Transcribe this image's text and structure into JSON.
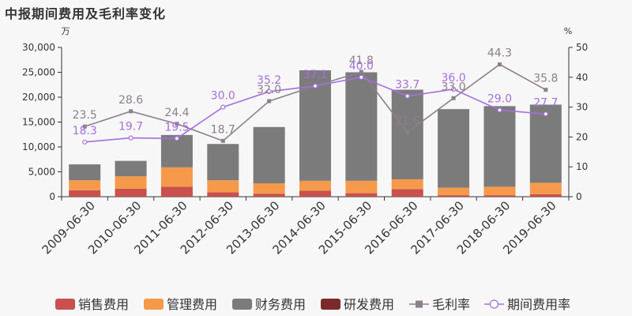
{
  "page": {
    "title": "中报期间费用及毛利率变化"
  },
  "chart_data": {
    "type": "bar",
    "stacked": true,
    "categories": [
      "2009-06-30",
      "2010-06-30",
      "2011-06-30",
      "2012-06-30",
      "2013-06-30",
      "2014-06-30",
      "2015-06-30",
      "2016-06-30",
      "2017-06-30",
      "2018-06-30",
      "2019-06-30"
    ],
    "left_axis": {
      "unit": "万",
      "min": 0,
      "max": 30000,
      "ticks": [
        "0",
        "5,000",
        "10,000",
        "15,000",
        "20,000",
        "25,000",
        "30,000"
      ]
    },
    "right_axis": {
      "unit": "%",
      "min": 0,
      "max": 50,
      "ticks": [
        "0",
        "10",
        "20",
        "30",
        "40",
        "50"
      ]
    },
    "series": [
      {
        "name": "销售费用",
        "kind": "bar",
        "color": "#c8504d",
        "values": [
          1300,
          1600,
          2000,
          900,
          600,
          1200,
          700,
          1500,
          300,
          300,
          500
        ]
      },
      {
        "name": "管理费用",
        "kind": "bar",
        "color": "#f59a4a",
        "values": [
          2000,
          2500,
          3900,
          2400,
          2100,
          2000,
          2500,
          2000,
          1500,
          1700,
          2300
        ]
      },
      {
        "name": "财务费用",
        "kind": "bar",
        "color": "#7b7b7b",
        "values": [
          3200,
          3100,
          6500,
          7300,
          11300,
          22200,
          21800,
          18000,
          15800,
          16200,
          15700
        ]
      },
      {
        "name": "研发费用",
        "kind": "bar",
        "color": "#7a2a2a",
        "values": [
          0,
          0,
          0,
          0,
          0,
          0,
          0,
          0,
          0,
          0,
          0
        ]
      },
      {
        "name": "毛利率",
        "kind": "line",
        "axis": "right",
        "color": "#8c7f8c",
        "marker": "square",
        "values": [
          23.5,
          28.6,
          24.4,
          18.7,
          32.0,
          37.1,
          41.8,
          21.6,
          33.0,
          44.3,
          35.8
        ],
        "labels": [
          "23.5",
          "28.6",
          "24.4",
          "18.7",
          "32.0",
          "37.1",
          "41.8",
          "21.6",
          "33.0",
          "44.3",
          "35.8"
        ]
      },
      {
        "name": "期间费用率",
        "kind": "line",
        "axis": "right",
        "color": "#a66ee0",
        "marker": "circle",
        "values": [
          18.3,
          19.7,
          19.5,
          30.0,
          35.2,
          37.1,
          40.0,
          33.7,
          36.0,
          29.0,
          27.7
        ],
        "labels": [
          "18.3",
          "19.7",
          "19.5",
          "30.0",
          "35.2",
          "37.1",
          "40.0",
          "33.7",
          "36.0",
          "29.0",
          "27.7"
        ]
      }
    ],
    "legend": {
      "position": "bottom"
    },
    "grid": false
  }
}
